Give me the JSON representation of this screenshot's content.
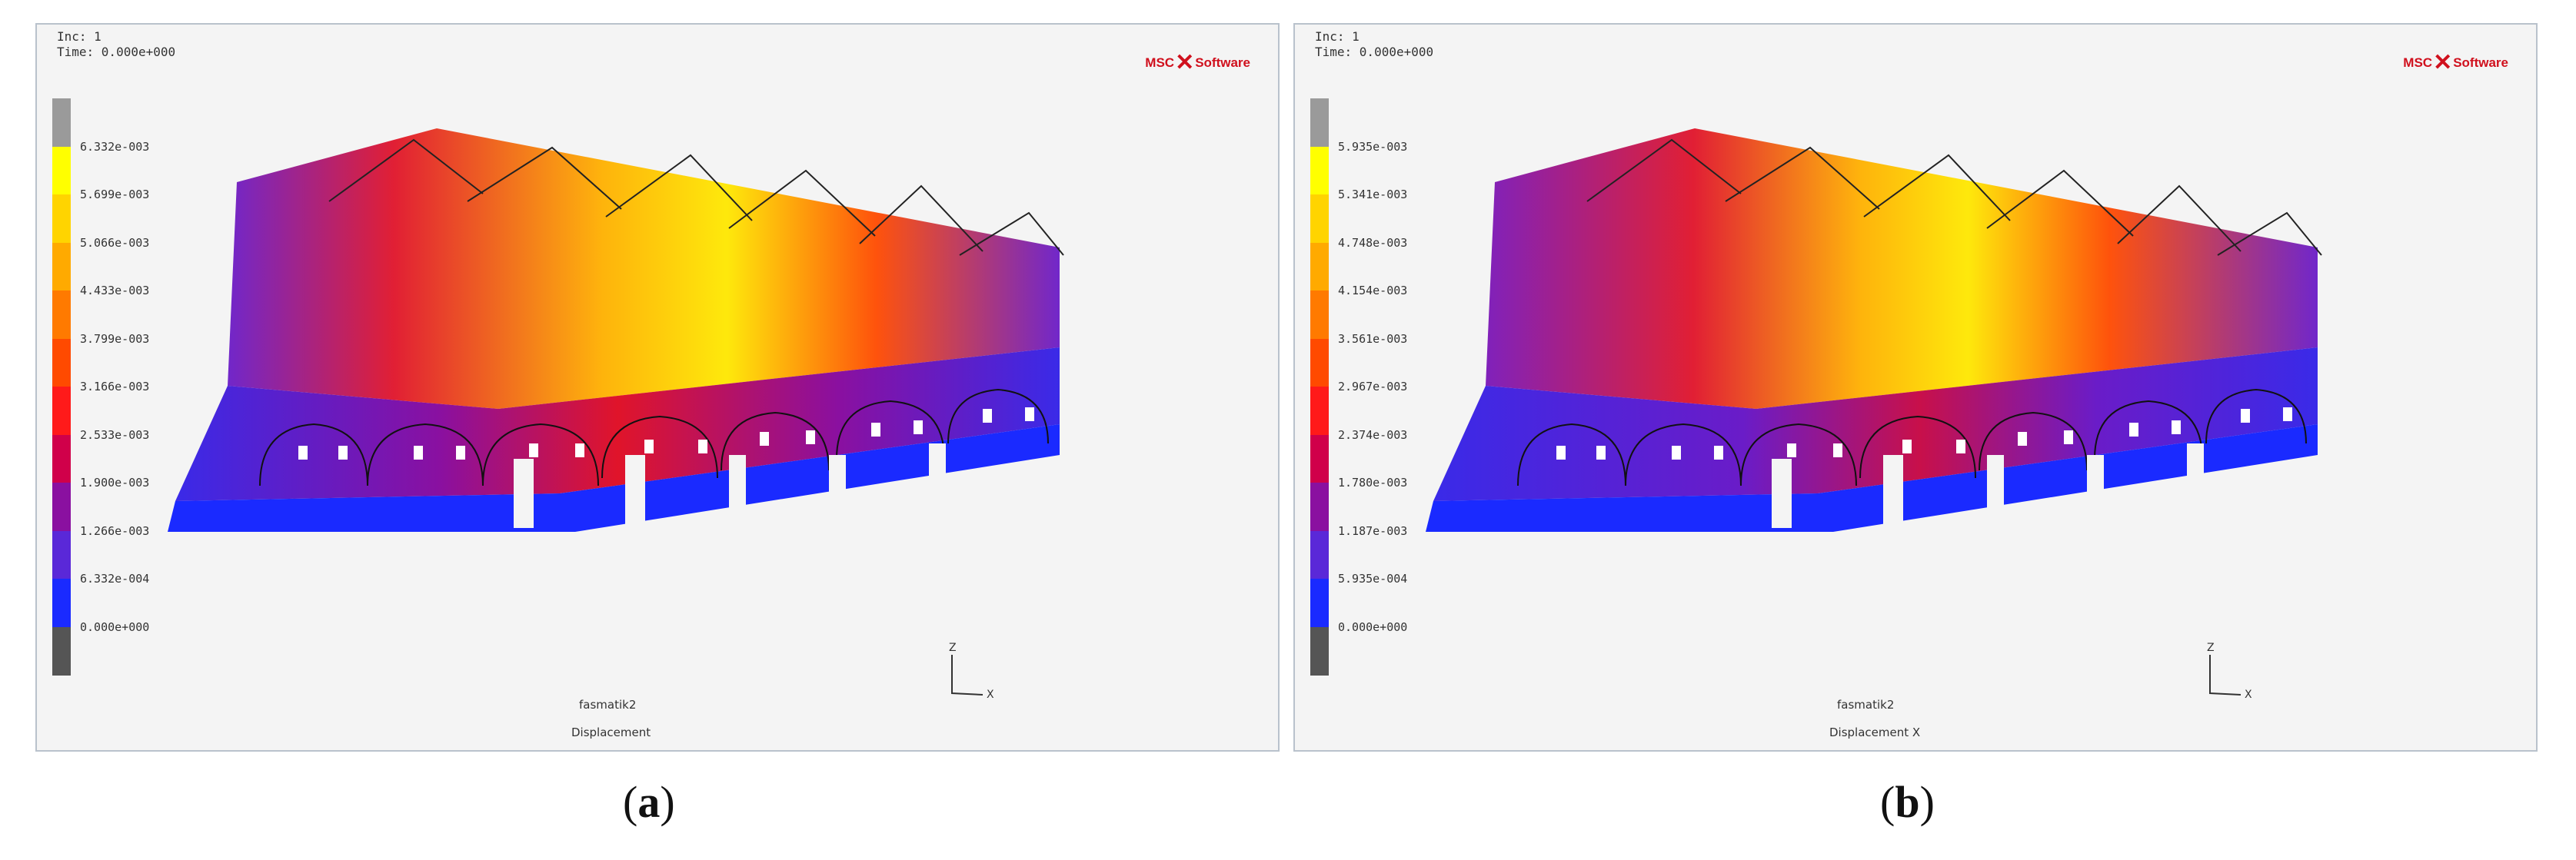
{
  "panels": [
    {
      "id": "a",
      "header": {
        "inc": "Inc:  1",
        "time": "Time:  0.000e+000"
      },
      "logo": {
        "left": "MSC",
        "right": "Software"
      },
      "legend": {
        "labels": [
          "6.332e-003",
          "5.699e-003",
          "5.066e-003",
          "4.433e-003",
          "3.799e-003",
          "3.166e-003",
          "2.533e-003",
          "1.900e-003",
          "1.266e-003",
          "6.332e-004",
          "0.000e+000"
        ],
        "colors": [
          "#9a9a9a",
          "#ffff00",
          "#ffd400",
          "#ffaa00",
          "#ff7a00",
          "#ff4a00",
          "#ff1a1a",
          "#d0004a",
          "#8a10a0",
          "#5a28d8",
          "#1a2aff",
          "#555555"
        ]
      },
      "footer": {
        "model": "fasmatik2",
        "quantity": "Displacement"
      },
      "caption": {
        "letter": "a"
      }
    },
    {
      "id": "b",
      "header": {
        "inc": "Inc:  1",
        "time": "Time:  0.000e+000"
      },
      "logo": {
        "left": "MSC",
        "right": "Software"
      },
      "legend": {
        "labels": [
          "5.935e-003",
          "5.341e-003",
          "4.748e-003",
          "4.154e-003",
          "3.561e-003",
          "2.967e-003",
          "2.374e-003",
          "1.780e-003",
          "1.187e-003",
          "5.935e-004",
          "0.000e+000"
        ],
        "colors": [
          "#9a9a9a",
          "#ffff00",
          "#ffd400",
          "#ffaa00",
          "#ff7a00",
          "#ff4a00",
          "#ff1a1a",
          "#d0004a",
          "#8a10a0",
          "#5a28d8",
          "#1a2aff",
          "#555555"
        ]
      },
      "footer": {
        "model": "fasmatik2",
        "quantity": "Displacement X"
      },
      "caption": {
        "letter": "b"
      }
    }
  ]
}
